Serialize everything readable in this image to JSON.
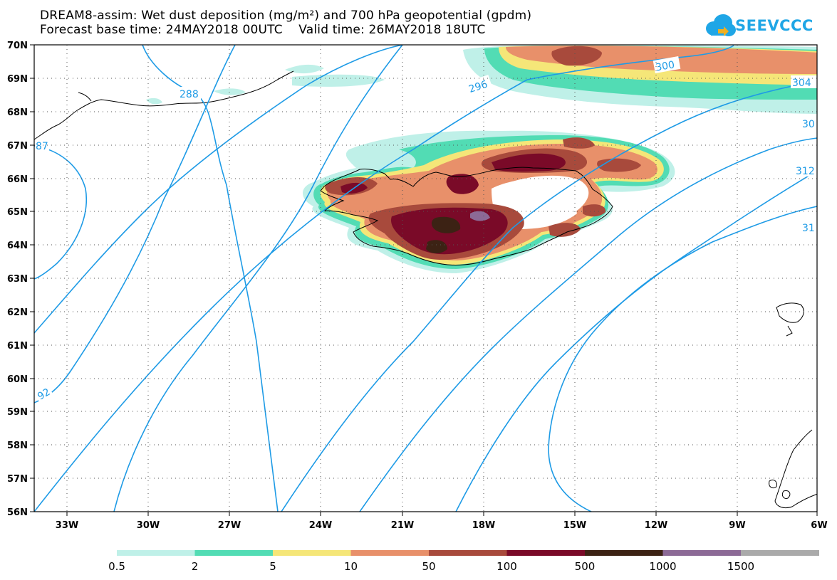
{
  "title_line1": "DREAM8-assim: Wet dust deposition (mg/m²) and 700 hPa geopotential (gpdm)",
  "title_line2": "Forecast base time: 24MAY2018 00UTC    Valid time: 26MAY2018 18UTC",
  "logo_text": "SEEVCCC",
  "logo_icon": "cloud-icon",
  "lat_labels": [
    "70N",
    "69N",
    "68N",
    "67N",
    "66N",
    "65N",
    "64N",
    "63N",
    "62N",
    "61N",
    "60N",
    "59N",
    "58N",
    "57N",
    "56N"
  ],
  "lon_labels": [
    "33W",
    "30W",
    "27W",
    "24W",
    "21W",
    "18W",
    "15W",
    "12W",
    "9W",
    "6W"
  ],
  "contour_labels": [
    "288",
    "296",
    "300",
    "304",
    "30",
    "312",
    "31",
    "92",
    "87"
  ],
  "colorbar": {
    "labels": [
      "0.5",
      "2",
      "5",
      "10",
      "50",
      "100",
      "500",
      "1000",
      "1500"
    ],
    "colors": [
      "#bff0e8",
      "#52dcb4",
      "#f5e678",
      "#e8906a",
      "#a84a3c",
      "#7a0a28",
      "#3c2214",
      "#8c6a96",
      "#aaaaaa"
    ]
  },
  "contour_color": "#1e9be6"
}
